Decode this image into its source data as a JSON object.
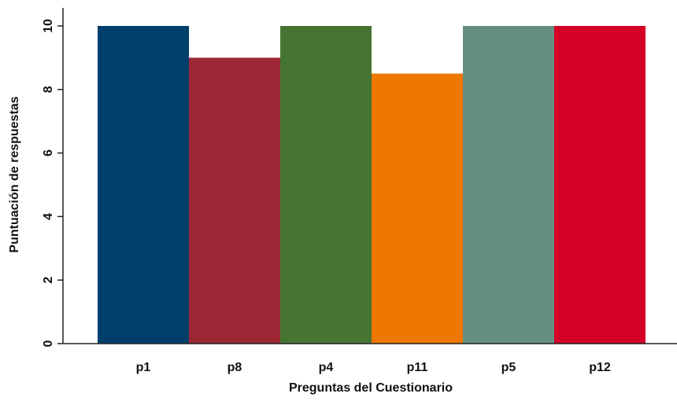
{
  "chart_data": {
    "type": "bar",
    "title": "",
    "xlabel": "Preguntas del Cuestionario",
    "ylabel": "Puntuación de respuestas",
    "categories": [
      "p1",
      "p8",
      "p4",
      "p11",
      "p5",
      "p12"
    ],
    "values": [
      10,
      9,
      10,
      8.5,
      10,
      10
    ],
    "colors": [
      "#003f6b",
      "#9e2735",
      "#467533",
      "#ee7700",
      "#658d80",
      "#d40026"
    ],
    "ylim": [
      0,
      10.5
    ],
    "y_ticks": [
      "0",
      "2",
      "4",
      "6",
      "8",
      "10"
    ],
    "grid": false,
    "legend": "none"
  }
}
